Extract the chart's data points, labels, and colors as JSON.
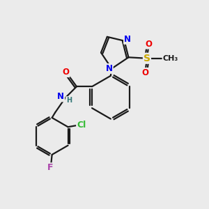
{
  "bg_color": "#ebebeb",
  "bond_color": "#1a1a1a",
  "bond_width": 1.6,
  "atom_colors": {
    "N": "#0000ee",
    "O": "#ee0000",
    "S": "#ccaa00",
    "Cl": "#33bb33",
    "F": "#aa44aa",
    "C": "#1a1a1a",
    "H": "#337777"
  },
  "font_size": 8.5
}
